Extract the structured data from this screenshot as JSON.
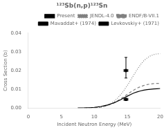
{
  "chart_data": {
    "type": "line",
    "title": "¹²³Sb(n,p)¹²³Sn",
    "xlabel": "Incident Neutron Energy (MeV)",
    "ylabel": "Cross Section (b)",
    "xlim": [
      0,
      20
    ],
    "ylim": [
      0,
      0.04
    ],
    "xticks": [
      0,
      5,
      10,
      15,
      20
    ],
    "yticks": [
      {
        "value": 0,
        "label": "0.00"
      },
      0.01,
      0.02,
      0.03,
      0.04
    ],
    "grid": false,
    "legend": "upper right",
    "series": [
      {
        "name": "Present",
        "color": "#000000",
        "line_style": "solid",
        "x": [
          7.5,
          8.0,
          8.5,
          9.0,
          9.5,
          10.0,
          10.5,
          11.0,
          11.5,
          12.0,
          12.5,
          13.0,
          13.5,
          14.0,
          14.5,
          15.0,
          15.5,
          16.0,
          16.5,
          17.0,
          17.5,
          18.0,
          18.5,
          19.0,
          19.5,
          20.0
        ],
        "values": [
          1e-05,
          3e-05,
          7e-05,
          0.00013,
          0.00022,
          0.00035,
          0.00055,
          0.00082,
          0.0012,
          0.0016,
          0.0022,
          0.0028,
          0.0036,
          0.0044,
          0.0054,
          0.0063,
          0.0072,
          0.008,
          0.0086,
          0.0091,
          0.0095,
          0.0098,
          0.01,
          0.0102,
          0.0103,
          0.0104
        ]
      },
      {
        "name": "JENDL-4.0",
        "color": "#808080",
        "line_style": "dotted",
        "x": [
          8.5,
          9.0,
          9.5,
          10.0,
          10.5,
          11.0,
          11.5,
          12.0,
          12.5,
          13.0,
          13.5,
          14.0,
          14.5,
          15.0,
          15.5,
          16.0,
          16.5,
          17.0,
          17.5,
          18.0,
          18.5,
          19.0,
          19.5,
          20.0
        ],
        "values": [
          1e-05,
          3e-05,
          7e-05,
          0.00014,
          0.00027,
          0.0005,
          0.0009,
          0.0015,
          0.0024,
          0.0036,
          0.0052,
          0.0071,
          0.0094,
          0.012,
          0.0148,
          0.0177,
          0.0205,
          0.0231,
          0.0252,
          0.0267,
          0.0278,
          0.0285,
          0.0289,
          0.029
        ]
      },
      {
        "name": "ENDF/B-VII.1",
        "color": "#808080",
        "line_style": "dashed",
        "x": [
          8.5,
          9.0,
          9.5,
          10.0,
          10.5,
          11.0,
          11.5,
          12.0,
          12.5,
          13.0,
          13.5,
          14.0,
          14.5,
          15.0,
          15.5,
          16.0,
          16.5,
          17.0,
          17.5,
          18.0,
          18.5,
          19.0,
          19.5,
          20.0
        ],
        "values": [
          1e-05,
          3e-05,
          7e-05,
          0.00014,
          0.00026,
          0.00047,
          0.00082,
          0.0013,
          0.002,
          0.0028,
          0.0038,
          0.0049,
          0.0061,
          0.0073,
          0.0085,
          0.0096,
          0.0106,
          0.0114,
          0.012,
          0.0125,
          0.0128,
          0.013,
          0.0131,
          0.0132
        ]
      },
      {
        "name": "Mavaddat+ (1974)",
        "type": "scatter",
        "marker": "square",
        "color": "#000000",
        "x": [
          14.8
        ],
        "values": [
          0.02
        ],
        "yerr_lo": [
          0.004
        ],
        "yerr_hi": [
          0.007
        ],
        "xerr": [
          0.3
        ]
      },
      {
        "name": "Levkovskiy+ (1971)",
        "type": "scatter",
        "marker": "square",
        "color": "#000000",
        "x": [
          14.8
        ],
        "values": [
          0.0046
        ],
        "yerr_lo": [
          0.0004
        ],
        "yerr_hi": [
          0.0004
        ],
        "xerr": [
          0.3
        ]
      }
    ]
  }
}
